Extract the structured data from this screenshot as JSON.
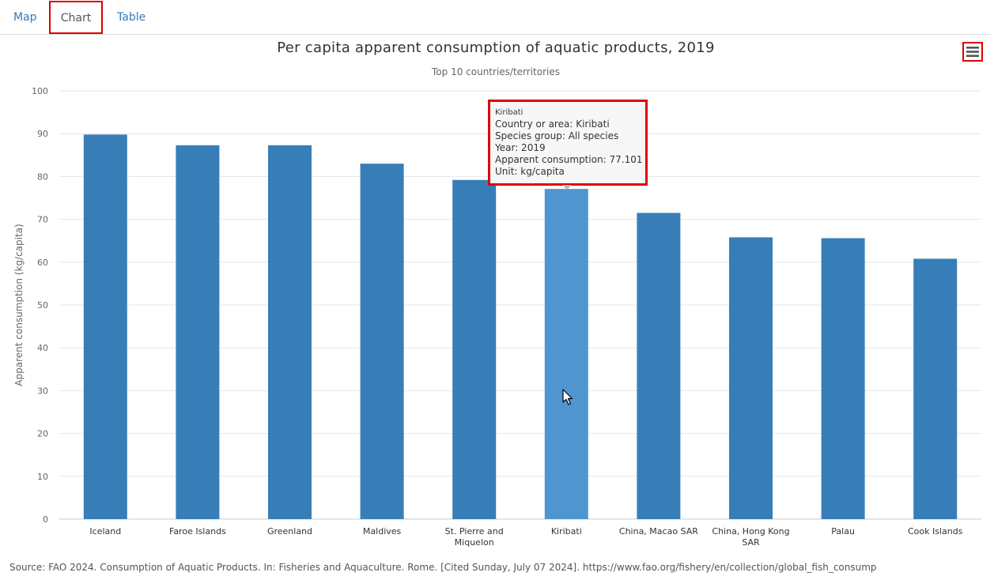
{
  "tabs": [
    {
      "label": "Map"
    },
    {
      "label": "Chart"
    },
    {
      "label": "Table"
    }
  ],
  "menu_icon": "hamburger-menu-icon",
  "colors": {
    "bar": "#377eb8",
    "bar_highlight": "#4f96d1",
    "highlight_box": "#e00000",
    "grid": "#e6e6e6"
  },
  "chart_data": {
    "type": "bar",
    "title": "Per capita apparent consumption of aquatic products, 2019",
    "subtitle": "Top 10 countries/territories",
    "ylabel": "Apparent consumption (kg/capita)",
    "xlabel": "",
    "ylim": [
      0,
      100
    ],
    "yticks": [
      0,
      10,
      20,
      30,
      40,
      50,
      60,
      70,
      80,
      90,
      100
    ],
    "grid": true,
    "categories": [
      [
        "Iceland"
      ],
      [
        "Faroe Islands"
      ],
      [
        "Greenland"
      ],
      [
        "Maldives"
      ],
      [
        "St. Pierre and",
        "Miquelon"
      ],
      [
        "Kiribati"
      ],
      [
        "China, Macao SAR"
      ],
      [
        "China, Hong Kong",
        "SAR"
      ],
      [
        "Palau"
      ],
      [
        "Cook Islands"
      ]
    ],
    "values": [
      89.8,
      87.3,
      87.3,
      83.0,
      79.2,
      77.101,
      71.5,
      65.8,
      65.6,
      60.8
    ],
    "highlighted_index": 5
  },
  "tooltip": {
    "header": "Kiribati",
    "lines": [
      "Country or area: Kiribati",
      "Species group: All species",
      "Year: 2019",
      "Apparent consumption: 77.101",
      "Unit: kg/capita"
    ]
  },
  "source": "Source: FAO 2024. Consumption of Aquatic Products. In: Fisheries and Aquaculture. Rome. [Cited Sunday, July 07 2024]. https://www.fao.org/fishery/en/collection/global_fish_consump"
}
